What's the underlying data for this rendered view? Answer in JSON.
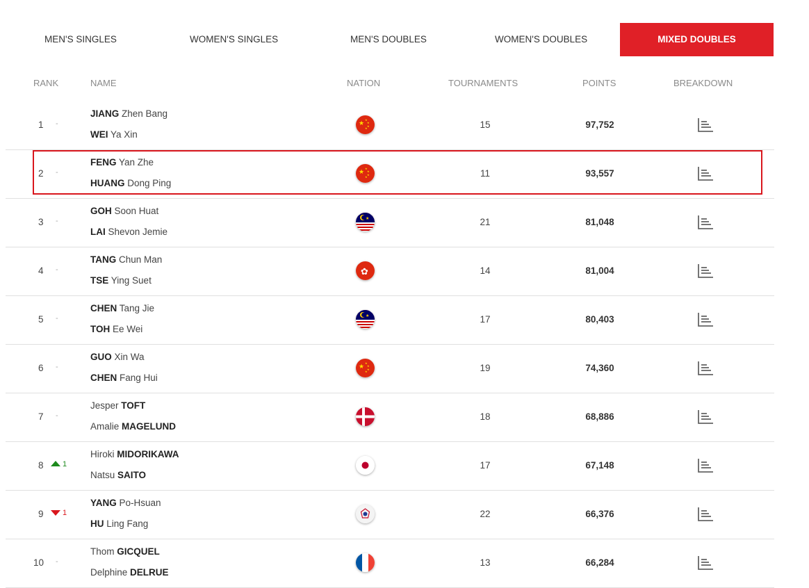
{
  "tabs": [
    {
      "label": "MEN'S SINGLES",
      "active": false
    },
    {
      "label": "WOMEN'S SINGLES",
      "active": false
    },
    {
      "label": "MEN'S DOUBLES",
      "active": false
    },
    {
      "label": "WOMEN'S DOUBLES",
      "active": false
    },
    {
      "label": "MIXED DOUBLES",
      "active": true
    }
  ],
  "headers": {
    "rank": "RANK",
    "name": "NAME",
    "nation": "NATION",
    "tournaments": "TOURNAMENTS",
    "points": "POINTS",
    "breakdown": "BREAKDOWN"
  },
  "colors": {
    "accent": "#e02027",
    "up": "#1d8a1d",
    "down": "#d9161d"
  },
  "rows": [
    {
      "rank": "1",
      "move": "-",
      "move_dir": "none",
      "move_num": "",
      "p1_first": "JIANG",
      "p1_rest": " Zhen Bang",
      "p1_bold_first": true,
      "p2_first": "WEI",
      "p2_rest": " Ya Xin",
      "p2_bold_first": true,
      "flag": "china-flag-icon",
      "tournaments": "15",
      "points": "97,752"
    },
    {
      "rank": "2",
      "move": "-",
      "move_dir": "none",
      "move_num": "",
      "p1_first": "FENG",
      "p1_rest": " Yan Zhe",
      "p1_bold_first": true,
      "p2_first": "HUANG",
      "p2_rest": " Dong Ping",
      "p2_bold_first": true,
      "flag": "china-flag-icon",
      "tournaments": "11",
      "points": "93,557"
    },
    {
      "rank": "3",
      "move": "-",
      "move_dir": "none",
      "move_num": "",
      "p1_first": "GOH",
      "p1_rest": " Soon Huat",
      "p1_bold_first": true,
      "p2_first": "LAI",
      "p2_rest": " Shevon Jemie",
      "p2_bold_first": true,
      "flag": "malaysia-flag-icon",
      "tournaments": "21",
      "points": "81,048"
    },
    {
      "rank": "4",
      "move": "-",
      "move_dir": "none",
      "move_num": "",
      "p1_first": "TANG",
      "p1_rest": " Chun Man",
      "p1_bold_first": true,
      "p2_first": "TSE",
      "p2_rest": " Ying Suet",
      "p2_bold_first": true,
      "flag": "hong-kong-flag-icon",
      "tournaments": "14",
      "points": "81,004"
    },
    {
      "rank": "5",
      "move": "-",
      "move_dir": "none",
      "move_num": "",
      "p1_first": "CHEN",
      "p1_rest": " Tang Jie",
      "p1_bold_first": true,
      "p2_first": "TOH",
      "p2_rest": " Ee Wei",
      "p2_bold_first": true,
      "flag": "malaysia-flag-icon",
      "tournaments": "17",
      "points": "80,403"
    },
    {
      "rank": "6",
      "move": "-",
      "move_dir": "none",
      "move_num": "",
      "p1_first": "GUO",
      "p1_rest": " Xin Wa",
      "p1_bold_first": true,
      "p2_first": "CHEN",
      "p2_rest": " Fang Hui",
      "p2_bold_first": true,
      "flag": "china-flag-icon",
      "tournaments": "19",
      "points": "74,360"
    },
    {
      "rank": "7",
      "move": "-",
      "move_dir": "none",
      "move_num": "",
      "p1_first": "Jesper ",
      "p1_rest": "TOFT",
      "p1_bold_first": false,
      "p2_first": "Amalie ",
      "p2_rest": "MAGELUND",
      "p2_bold_first": false,
      "flag": "denmark-flag-icon",
      "tournaments": "18",
      "points": "68,886"
    },
    {
      "rank": "8",
      "move": "",
      "move_dir": "up",
      "move_num": "1",
      "p1_first": "Hiroki ",
      "p1_rest": "MIDORIKAWA",
      "p1_bold_first": false,
      "p2_first": "Natsu ",
      "p2_rest": "SAITO",
      "p2_bold_first": false,
      "flag": "japan-flag-icon",
      "tournaments": "17",
      "points": "67,148"
    },
    {
      "rank": "9",
      "move": "",
      "move_dir": "down",
      "move_num": "1",
      "p1_first": "YANG",
      "p1_rest": " Po-Hsuan",
      "p1_bold_first": true,
      "p2_first": "HU",
      "p2_rest": " Ling Fang",
      "p2_bold_first": true,
      "flag": "chinese-taipei-flag-icon",
      "tournaments": "22",
      "points": "66,376"
    },
    {
      "rank": "10",
      "move": "-",
      "move_dir": "none",
      "move_num": "",
      "p1_first": "Thom ",
      "p1_rest": "GICQUEL",
      "p1_bold_first": false,
      "p2_first": "Delphine ",
      "p2_rest": "DELRUE",
      "p2_bold_first": false,
      "flag": "france-flag-icon",
      "tournaments": "13",
      "points": "66,284"
    }
  ]
}
